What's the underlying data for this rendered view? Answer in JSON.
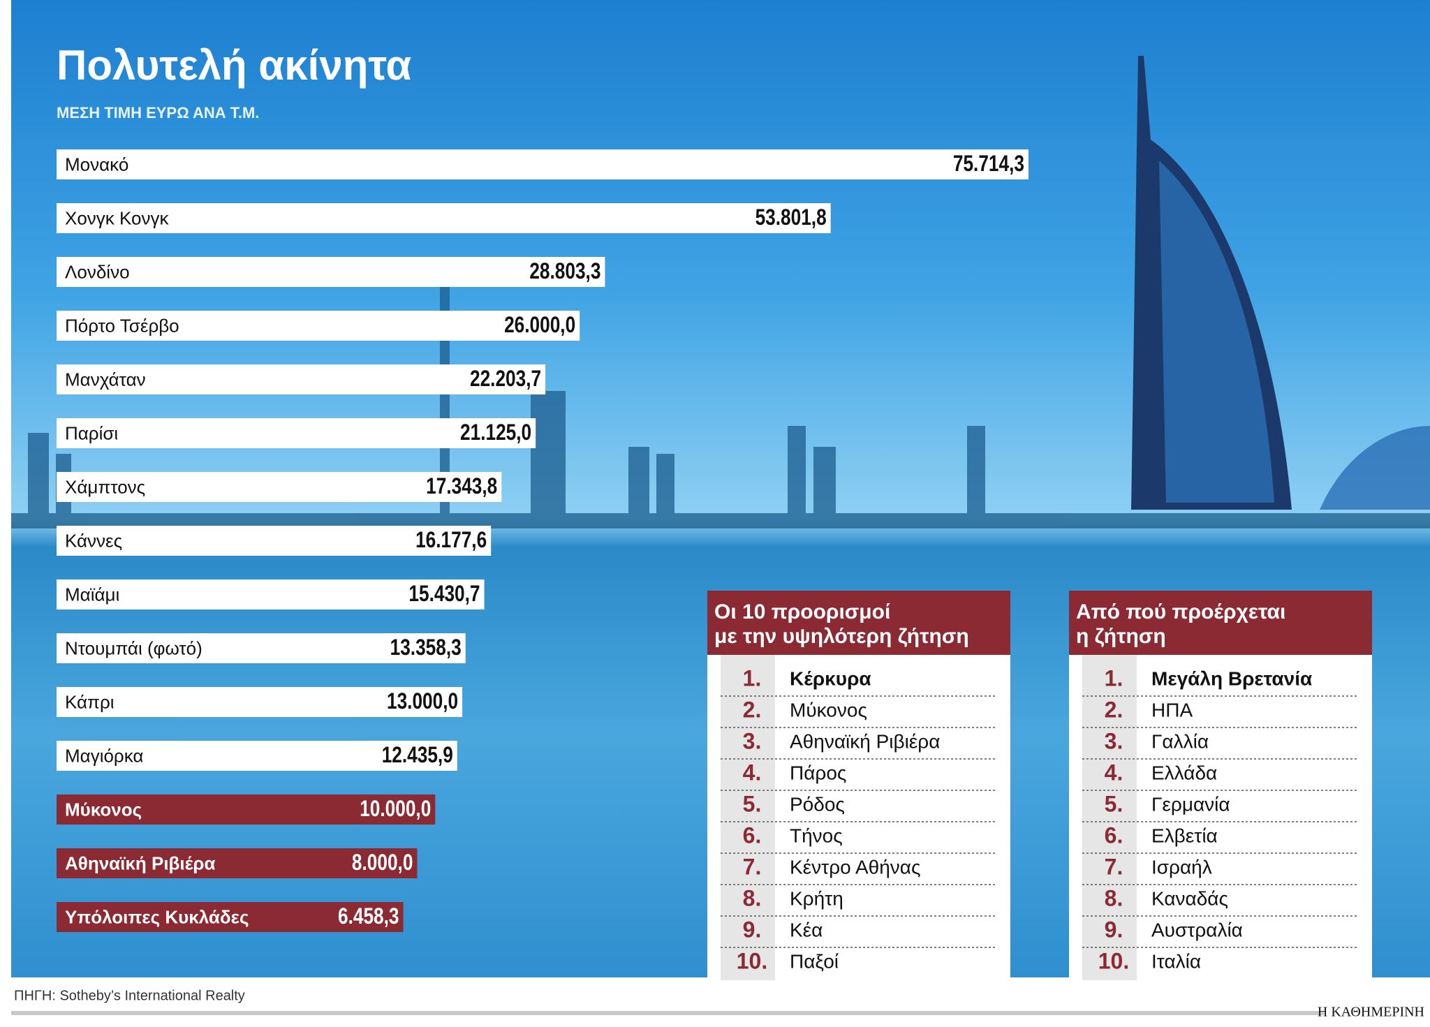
{
  "chart_data": {
    "type": "bar",
    "orientation": "horizontal",
    "title": "Πολυτελή ακίνητα",
    "subtitle": "ΜΕΣΗ ΤΙΜΗ ΕΥΡΩ ΑΝΑ Τ.Μ.",
    "categories": [
      "Μονακό",
      "Χονγκ Κονγκ",
      "Λονδίνο",
      "Πόρτο Τσέρβο",
      "Μανχάταν",
      "Παρίσι",
      "Χάμπτονς",
      "Κάννες",
      "Μαϊάμι",
      "Ντουμπάι (φωτό)",
      "Κάπρι",
      "Μαγιόρκα",
      "Μύκονος",
      "Αθηναϊκή Ριβιέρα",
      "Υπόλοιπες Κυκλάδες"
    ],
    "values": [
      75714.3,
      53801.8,
      28803.3,
      26000.0,
      22203.7,
      21125.0,
      17343.8,
      16177.6,
      15430.7,
      13358.3,
      13000.0,
      12435.9,
      10000.0,
      8000.0,
      6458.3
    ],
    "value_labels": [
      "75.714,3",
      "53.801,8",
      "28.803,3",
      "26.000,0",
      "22.203,7",
      "21.125,0",
      "17.343,8",
      "16.177,6",
      "15.430,7",
      "13.358,3",
      "13.000,0",
      "12.435,9",
      "10.000,0",
      "8.000,0",
      "6.458,3"
    ],
    "colors": [
      "#ffffff",
      "#ffffff",
      "#ffffff",
      "#ffffff",
      "#ffffff",
      "#ffffff",
      "#ffffff",
      "#ffffff",
      "#ffffff",
      "#ffffff",
      "#ffffff",
      "#ffffff",
      "#8c2a33",
      "#8c2a33",
      "#8c2a33"
    ]
  },
  "tables": [
    {
      "title_lines": [
        "Οι 10 προορισμοί",
        "με την υψηλότερη ζήτηση"
      ],
      "ranks": [
        "1.",
        "2.",
        "3.",
        "4.",
        "5.",
        "6.",
        "7.",
        "8.",
        "9.",
        "10."
      ],
      "items": [
        "Κέρκυρα",
        "Μύκονος",
        "Αθηναϊκή Ριβιέρα",
        "Πάρος",
        "Ρόδος",
        "Τήνος",
        "Κέντρο Αθήνας",
        "Κρήτη",
        "Κέα",
        "Παξοί"
      ]
    },
    {
      "title_lines": [
        "Από πού προέρχεται",
        "η ζήτηση"
      ],
      "ranks": [
        "1.",
        "2.",
        "3.",
        "4.",
        "5.",
        "6.",
        "7.",
        "8.",
        "9.",
        "10."
      ],
      "items": [
        "Μεγάλη Βρετανία",
        "ΗΠΑ",
        "Γαλλία",
        "Ελλάδα",
        "Γερμανία",
        "Ελβετία",
        "Ισραήλ",
        "Καναδάς",
        "Αυστραλία",
        "Ιταλία"
      ]
    }
  ],
  "source": "ΠΗΓΗ: Sotheby’s International Realty",
  "brand": "Η ΚΑΘΗΜΕΡΙΝΗ"
}
